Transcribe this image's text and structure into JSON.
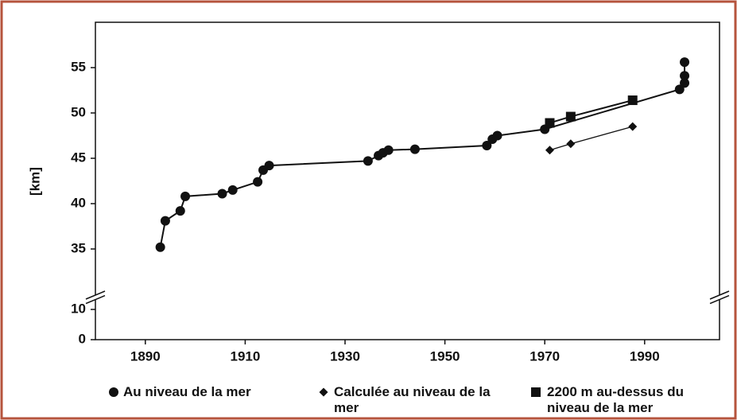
{
  "chart_data": {
    "type": "line",
    "ylabel": "[km]",
    "xlim": [
      1880,
      2005
    ],
    "xticks": [
      1890,
      1910,
      1930,
      1950,
      1970,
      1990
    ],
    "ylim": [
      0,
      60
    ],
    "ybreak": [
      13,
      30
    ],
    "yticks": [
      0,
      10,
      35,
      40,
      45,
      50,
      55
    ],
    "grid": false,
    "legend": "bottom",
    "series": [
      {
        "name": "Au niveau de la mer",
        "marker": "circle",
        "color": "#111111",
        "x": [
          1893,
          1894,
          1897,
          1898,
          1905.4,
          1907.5,
          1912.5,
          1913.6,
          1914.8,
          1934.6,
          1936.7,
          1937.6,
          1938.7,
          1944,
          1958.4,
          1959.5,
          1960.5,
          1970,
          1997,
          1998,
          1998,
          1998
        ],
        "values": [
          35.2,
          38.1,
          39.2,
          40.8,
          41.1,
          41.5,
          42.4,
          43.7,
          44.2,
          44.7,
          45.3,
          45.6,
          45.9,
          46.0,
          46.4,
          47.1,
          47.5,
          48.2,
          52.6,
          53.3,
          54.1,
          55.6
        ]
      },
      {
        "name": "Calculée au niveau de la mer",
        "marker": "diamond",
        "color": "#111111",
        "x": [
          1971,
          1975.2,
          1987.6
        ],
        "values": [
          45.9,
          46.6,
          48.5
        ]
      },
      {
        "name": "2200 m au-dessus du niveau de la mer",
        "marker": "square",
        "color": "#111111",
        "x": [
          1971,
          1975.2,
          1987.6
        ],
        "values": [
          48.9,
          49.6,
          51.4
        ]
      }
    ]
  }
}
